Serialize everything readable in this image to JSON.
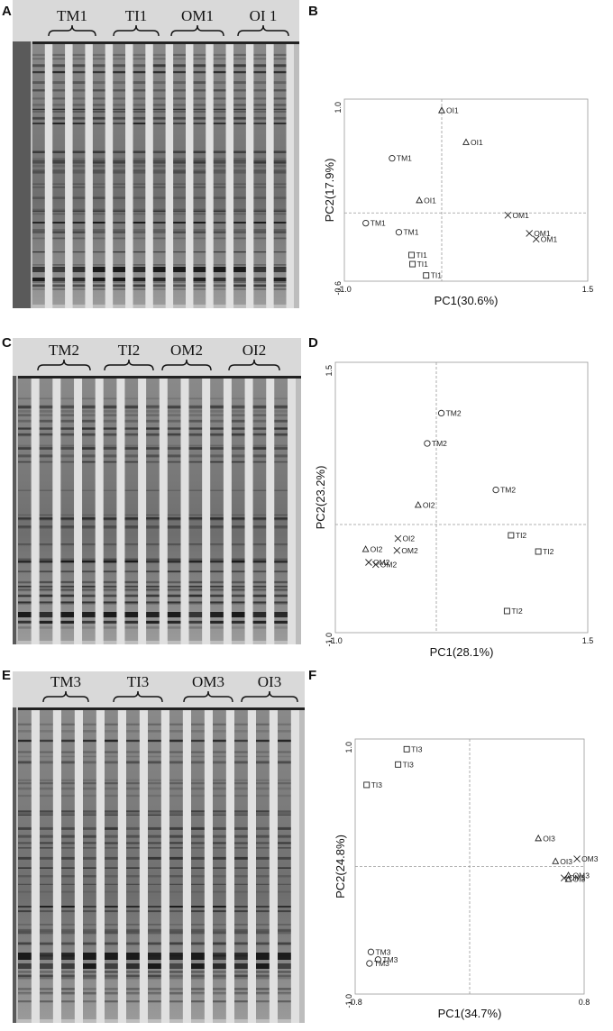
{
  "panels": [
    {
      "id": "A",
      "letter": "A",
      "type": "gel",
      "groups": [
        "TM1",
        "TI1",
        "OM1",
        "OI 1"
      ]
    },
    {
      "id": "B",
      "letter": "B",
      "type": "pca",
      "xlabel": "PC1(30.6%)",
      "ylabel": "PC2(17.9%)",
      "xlim": [
        -1.0,
        1.5
      ],
      "ylim": [
        -0.6,
        1.0
      ],
      "xticks": [
        "-1.0",
        "1.5"
      ],
      "yticks": [
        "1.0",
        "-0.6"
      ],
      "points": [
        {
          "m": "tri",
          "x": 0.0,
          "y": 0.9,
          "label": "OI1"
        },
        {
          "m": "tri",
          "x": 0.25,
          "y": 0.62,
          "label": "OI1"
        },
        {
          "m": "circ",
          "x": -0.51,
          "y": 0.48,
          "label": "TM1"
        },
        {
          "m": "tri",
          "x": -0.23,
          "y": 0.11,
          "label": "OI1"
        },
        {
          "m": "circ",
          "x": -0.78,
          "y": -0.09,
          "label": "TM1"
        },
        {
          "m": "circ",
          "x": -0.44,
          "y": -0.17,
          "label": "TM1"
        },
        {
          "m": "cross",
          "x": 0.68,
          "y": -0.02,
          "label": "OM1"
        },
        {
          "m": "cross",
          "x": 0.9,
          "y": -0.18,
          "label": "OM1"
        },
        {
          "m": "cross",
          "x": 0.97,
          "y": -0.23,
          "label": "OM1"
        },
        {
          "m": "sq",
          "x": -0.31,
          "y": -0.37,
          "label": "TI1"
        },
        {
          "m": "sq",
          "x": -0.3,
          "y": -0.45,
          "label": "TI1"
        },
        {
          "m": "sq",
          "x": -0.16,
          "y": -0.55,
          "label": "TI1"
        }
      ]
    },
    {
      "id": "C",
      "letter": "C",
      "type": "gel",
      "groups": [
        "TM2",
        "TI2",
        "OM2",
        "OI2"
      ]
    },
    {
      "id": "D",
      "letter": "D",
      "type": "pca",
      "xlabel": "PC1(28.1%)",
      "ylabel": "PC2(23.2%)",
      "xlim": [
        -1.0,
        1.5
      ],
      "ylim": [
        -1.0,
        1.5
      ],
      "xticks": [
        "-1.0",
        "1.5"
      ],
      "yticks": [
        "1.5",
        "-1.0"
      ],
      "points": [
        {
          "m": "circ",
          "x": 0.05,
          "y": 1.03,
          "label": "TM2"
        },
        {
          "m": "circ",
          "x": -0.09,
          "y": 0.75,
          "label": "TM2"
        },
        {
          "m": "circ",
          "x": 0.59,
          "y": 0.32,
          "label": "TM2"
        },
        {
          "m": "tri",
          "x": -0.18,
          "y": 0.18,
          "label": "OI2"
        },
        {
          "m": "sq",
          "x": 0.74,
          "y": -0.1,
          "label": "TI2"
        },
        {
          "m": "sq",
          "x": 1.01,
          "y": -0.25,
          "label": "TI2"
        },
        {
          "m": "sq",
          "x": 0.7,
          "y": -0.8,
          "label": "TI2"
        },
        {
          "m": "cross",
          "x": -0.38,
          "y": -0.13,
          "label": "OI2"
        },
        {
          "m": "tri",
          "x": -0.7,
          "y": -0.23,
          "label": "OI2"
        },
        {
          "m": "cross",
          "x": -0.39,
          "y": -0.24,
          "label": "OM2"
        },
        {
          "m": "cross",
          "x": -0.67,
          "y": -0.35,
          "label": "OM2"
        },
        {
          "m": "cross",
          "x": -0.6,
          "y": -0.37,
          "label": "OM2"
        }
      ]
    },
    {
      "id": "E",
      "letter": "E",
      "type": "gel",
      "groups": [
        "TM3",
        "TI3",
        "OM3",
        "OI3"
      ]
    },
    {
      "id": "F",
      "letter": "F",
      "type": "pca",
      "xlabel": "PC1(34.7%)",
      "ylabel": "PC2(24.8%)",
      "xlim": [
        -0.8,
        0.8
      ],
      "ylim": [
        -1.0,
        1.0
      ],
      "xticks": [
        "-0.8",
        "0.8"
      ],
      "yticks": [
        "1.0",
        "-1.0"
      ],
      "points": [
        {
          "m": "sq",
          "x": -0.44,
          "y": 0.92,
          "label": "TI3"
        },
        {
          "m": "sq",
          "x": -0.5,
          "y": 0.8,
          "label": "TI3"
        },
        {
          "m": "sq",
          "x": -0.72,
          "y": 0.64,
          "label": "TI3"
        },
        {
          "m": "tri",
          "x": 0.48,
          "y": 0.22,
          "label": "OI3"
        },
        {
          "m": "cross",
          "x": 0.75,
          "y": 0.06,
          "label": "OM3"
        },
        {
          "m": "tri",
          "x": 0.6,
          "y": 0.04,
          "label": "OI3"
        },
        {
          "m": "tri",
          "x": 0.69,
          "y": -0.07,
          "label": "OM3"
        },
        {
          "m": "cross",
          "x": 0.66,
          "y": -0.09,
          "label": "OM3"
        },
        {
          "m": "tri",
          "x": 0.69,
          "y": -0.1,
          "label": "OI3"
        },
        {
          "m": "circ",
          "x": -0.69,
          "y": -0.67,
          "label": "TM3"
        },
        {
          "m": "circ",
          "x": -0.64,
          "y": -0.73,
          "label": "TM3"
        },
        {
          "m": "circ",
          "x": -0.7,
          "y": -0.76,
          "label": "TM3"
        }
      ]
    }
  ]
}
